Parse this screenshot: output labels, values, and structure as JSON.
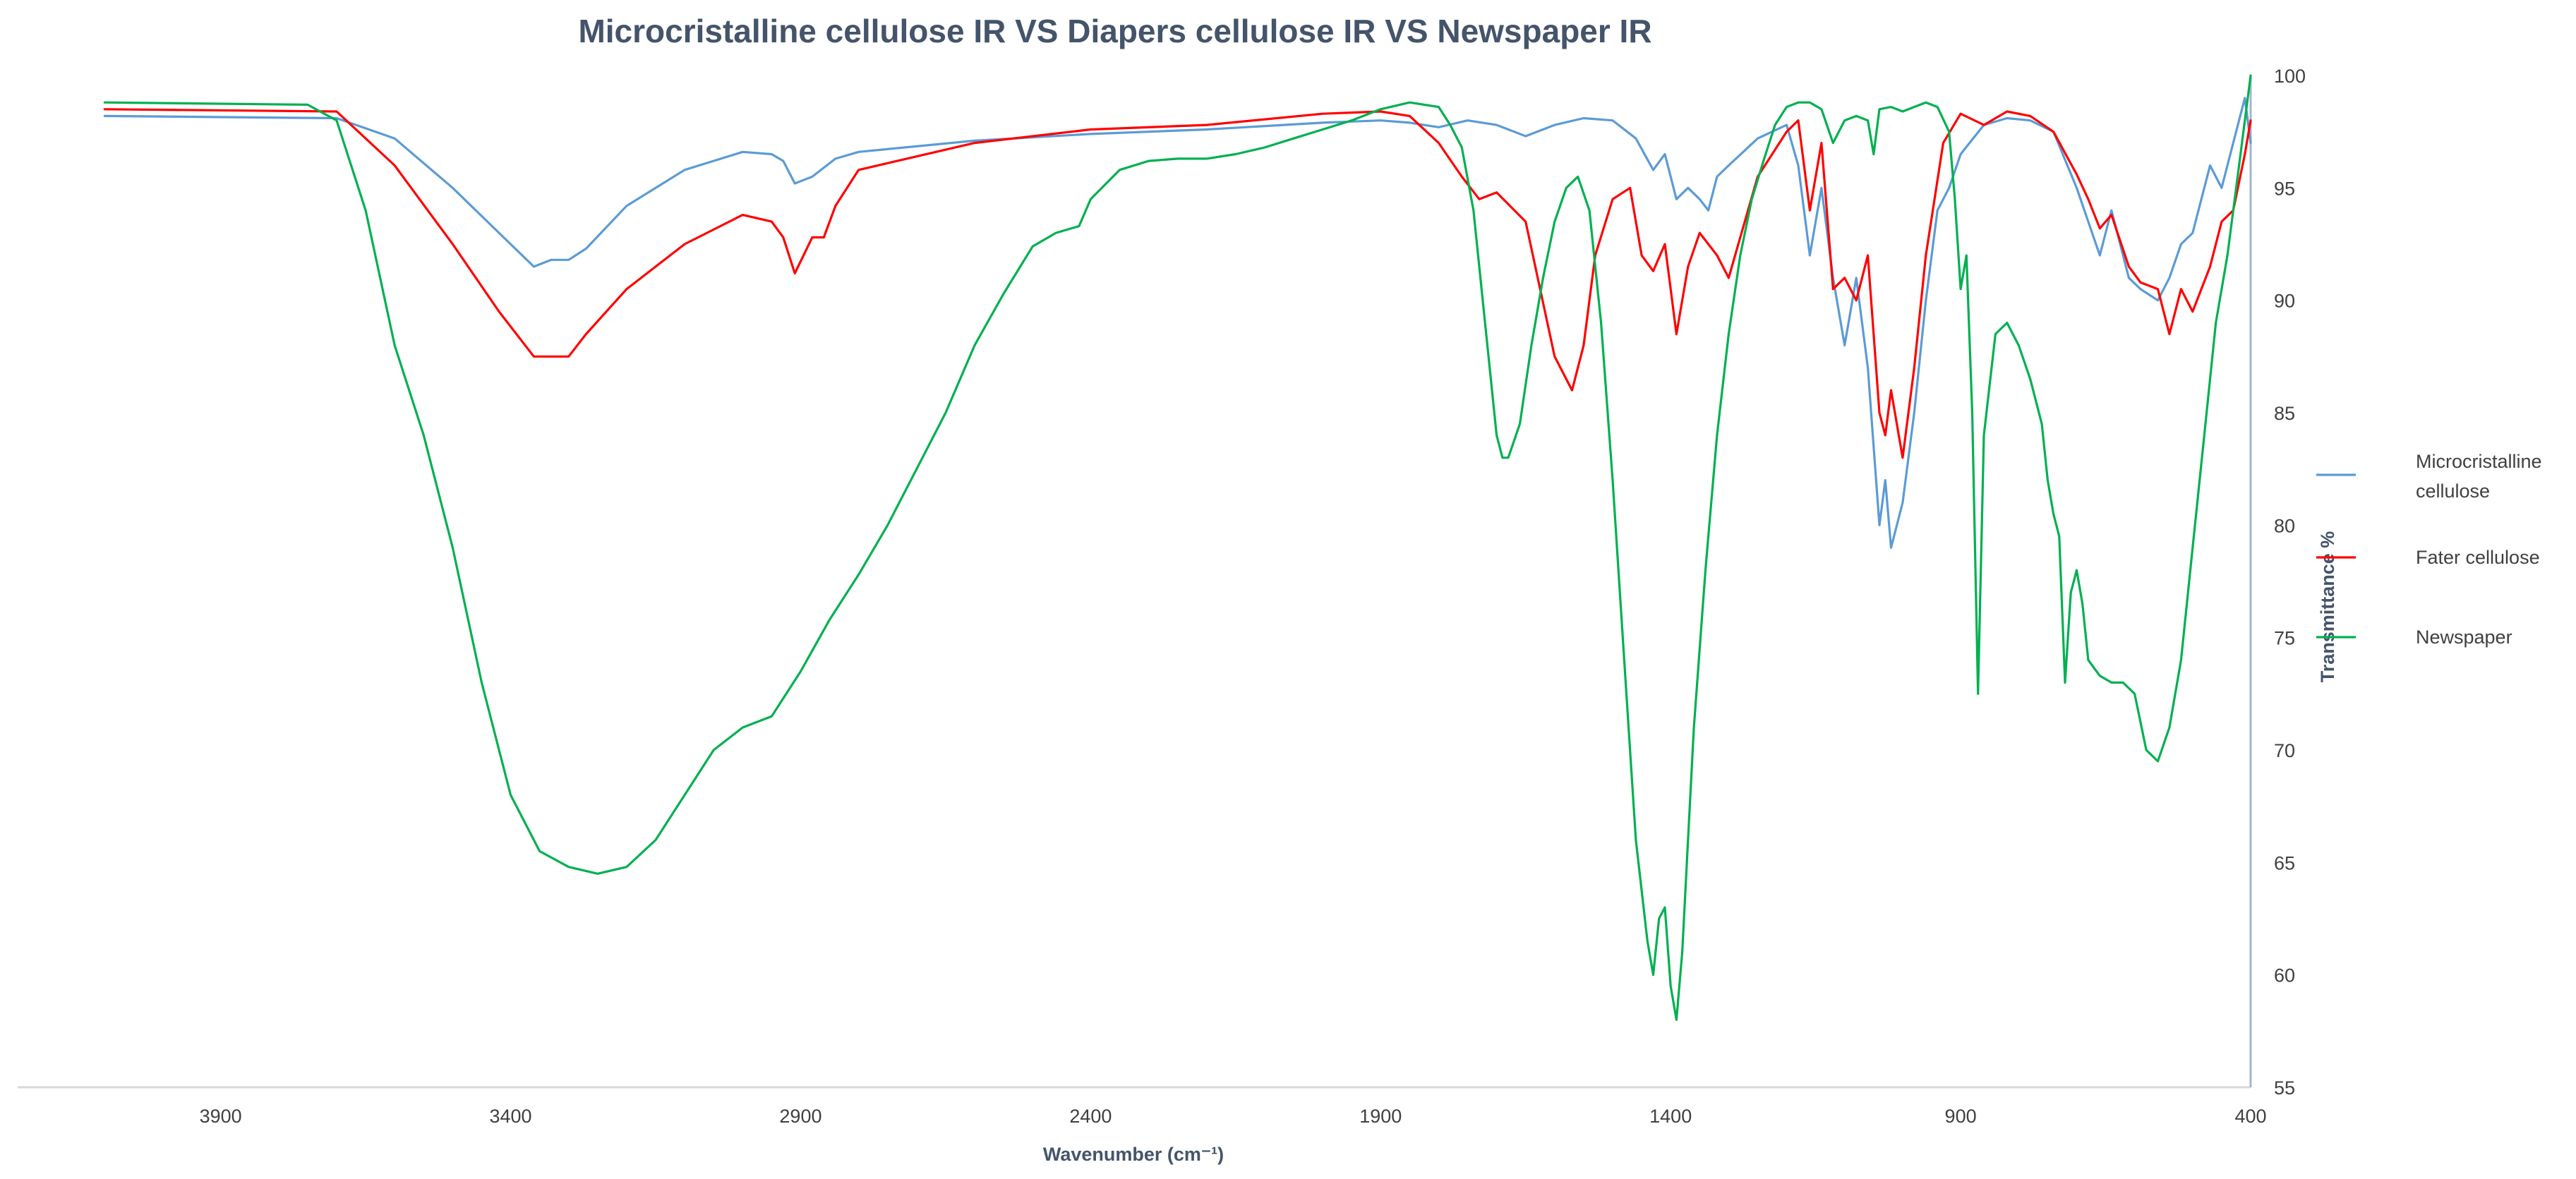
{
  "chart_data": {
    "type": "line",
    "title": "Microcristalline  cellulose IR VS Diapers cellulose IR VS  Newspaper IR",
    "xlabel": "Wavenumber (cm⁻¹)",
    "ylabel": "Transmittance %",
    "xlim": [
      4250,
      400
    ],
    "ylim": [
      55,
      100
    ],
    "x_ticks": [
      3900,
      3400,
      2900,
      2400,
      1900,
      1400,
      900,
      400
    ],
    "x_tick_labels": [
      "3900",
      "3400",
      "2900",
      "2400",
      "1900",
      "1400",
      "900",
      "400"
    ],
    "y_ticks": [
      55,
      60,
      65,
      70,
      75,
      80,
      85,
      90,
      95,
      100
    ],
    "y_tick_labels": [
      "55",
      "60",
      "65",
      "70",
      "75",
      "80",
      "85",
      "90",
      "95",
      "100"
    ],
    "legend_position": "right",
    "series": [
      {
        "name": "Microcristalline cellulose",
        "legend_lines": [
          "Microcristalline",
          "cellulose"
        ],
        "color": "#5b9bd5",
        "x": [
          4100,
          3700,
          3600,
          3500,
          3420,
          3360,
          3330,
          3300,
          3270,
          3200,
          3100,
          3000,
          2950,
          2930,
          2910,
          2880,
          2840,
          2800,
          2600,
          2400,
          2200,
          2000,
          1900,
          1850,
          1800,
          1750,
          1700,
          1650,
          1600,
          1550,
          1500,
          1460,
          1430,
          1410,
          1390,
          1370,
          1350,
          1335,
          1320,
          1300,
          1250,
          1200,
          1180,
          1160,
          1140,
          1120,
          1100,
          1080,
          1060,
          1040,
          1030,
          1020,
          1000,
          980,
          960,
          940,
          920,
          900,
          860,
          820,
          780,
          740,
          700,
          680,
          660,
          640,
          610,
          590,
          560,
          540,
          520,
          500,
          470,
          450,
          430,
          410,
          400
        ],
        "y": [
          98.2,
          98.1,
          97.2,
          95.0,
          93.0,
          91.5,
          91.8,
          91.8,
          92.3,
          94.2,
          95.8,
          96.6,
          96.5,
          96.2,
          95.2,
          95.5,
          96.3,
          96.6,
          97.1,
          97.4,
          97.6,
          97.9,
          98.0,
          97.9,
          97.7,
          98.0,
          97.8,
          97.3,
          97.8,
          98.1,
          98.0,
          97.2,
          95.8,
          96.5,
          94.5,
          95.0,
          94.5,
          94.0,
          95.5,
          96.0,
          97.2,
          97.8,
          96.0,
          92.0,
          95.0,
          91.0,
          88.0,
          91.0,
          87.0,
          80.0,
          82.0,
          79.0,
          81.0,
          85.0,
          90.0,
          94.0,
          95.0,
          96.5,
          97.8,
          98.1,
          98.0,
          97.5,
          95.0,
          93.5,
          92.0,
          94.0,
          91.0,
          90.5,
          90.0,
          91.0,
          92.5,
          93.0,
          96.0,
          95.0,
          97.0,
          99.0,
          97.0
        ]
      },
      {
        "name": "Fater cellulose",
        "legend_lines": [
          "Fater cellulose"
        ],
        "color": "#ff0000",
        "x": [
          4100,
          3700,
          3600,
          3500,
          3420,
          3360,
          3330,
          3300,
          3270,
          3200,
          3100,
          3000,
          2950,
          2930,
          2910,
          2880,
          2860,
          2840,
          2800,
          2600,
          2400,
          2200,
          2000,
          1900,
          1850,
          1800,
          1760,
          1730,
          1700,
          1650,
          1600,
          1570,
          1550,
          1530,
          1500,
          1470,
          1450,
          1430,
          1410,
          1390,
          1370,
          1350,
          1320,
          1300,
          1250,
          1200,
          1180,
          1160,
          1140,
          1120,
          1100,
          1080,
          1060,
          1040,
          1030,
          1020,
          1000,
          980,
          960,
          930,
          900,
          860,
          820,
          780,
          740,
          700,
          680,
          660,
          640,
          610,
          590,
          560,
          540,
          520,
          500,
          470,
          450,
          430,
          410,
          400
        ],
        "y": [
          98.5,
          98.4,
          96.0,
          92.5,
          89.5,
          87.5,
          87.5,
          87.5,
          88.5,
          90.5,
          92.5,
          93.8,
          93.5,
          92.8,
          91.2,
          92.8,
          92.8,
          94.2,
          95.8,
          97.0,
          97.6,
          97.8,
          98.3,
          98.4,
          98.2,
          97.0,
          95.5,
          94.5,
          94.8,
          93.5,
          87.5,
          86.0,
          88.0,
          92.0,
          94.5,
          95.0,
          92.0,
          91.3,
          92.5,
          88.5,
          91.5,
          93.0,
          92.0,
          91.0,
          95.5,
          97.5,
          98.0,
          94.0,
          97.0,
          90.5,
          91.0,
          90.0,
          92.0,
          85.0,
          84.0,
          86.0,
          83.0,
          87.0,
          92.0,
          97.0,
          98.3,
          97.8,
          98.4,
          98.2,
          97.5,
          95.6,
          94.5,
          93.2,
          93.8,
          91.5,
          90.8,
          90.5,
          88.5,
          90.5,
          89.5,
          91.5,
          93.5,
          94.0,
          96.5,
          98.0
        ]
      },
      {
        "name": "Newspaper",
        "legend_lines": [
          "Newspaper"
        ],
        "color": "#00b050",
        "x": [
          4100,
          3750,
          3700,
          3650,
          3600,
          3550,
          3500,
          3450,
          3400,
          3350,
          3300,
          3250,
          3200,
          3150,
          3100,
          3050,
          3000,
          2950,
          2900,
          2850,
          2800,
          2750,
          2700,
          2650,
          2600,
          2550,
          2500,
          2460,
          2420,
          2400,
          2350,
          2300,
          2250,
          2200,
          2150,
          2100,
          2050,
          2000,
          1950,
          1900,
          1850,
          1800,
          1780,
          1760,
          1740,
          1720,
          1700,
          1690,
          1680,
          1660,
          1640,
          1620,
          1600,
          1580,
          1560,
          1540,
          1520,
          1500,
          1480,
          1460,
          1440,
          1430,
          1420,
          1410,
          1400,
          1390,
          1380,
          1370,
          1360,
          1340,
          1320,
          1300,
          1280,
          1260,
          1240,
          1220,
          1200,
          1180,
          1160,
          1140,
          1120,
          1100,
          1080,
          1060,
          1050,
          1040,
          1020,
          1000,
          980,
          960,
          940,
          920,
          910,
          900,
          890,
          880,
          870,
          860,
          840,
          820,
          800,
          780,
          760,
          750,
          740,
          730,
          720,
          710,
          700,
          690,
          680,
          660,
          640,
          620,
          600,
          580,
          560,
          540,
          520,
          500,
          480,
          460,
          440,
          420,
          410,
          400
        ],
        "y": [
          98.8,
          98.7,
          98.0,
          94.0,
          88.0,
          84.0,
          79.0,
          73.0,
          68.0,
          65.5,
          64.8,
          64.5,
          64.8,
          66.0,
          68.0,
          70.0,
          71.0,
          71.5,
          73.5,
          75.8,
          77.8,
          80.0,
          82.5,
          85.0,
          88.0,
          90.3,
          92.4,
          93.0,
          93.3,
          94.5,
          95.8,
          96.2,
          96.3,
          96.3,
          96.5,
          96.8,
          97.2,
          97.6,
          98.0,
          98.5,
          98.8,
          98.6,
          97.8,
          96.8,
          94.0,
          89.0,
          84.0,
          83.0,
          83.0,
          84.5,
          88.0,
          91.0,
          93.5,
          95.0,
          95.5,
          94.0,
          89.0,
          82.0,
          74.0,
          66.0,
          61.5,
          60.0,
          62.5,
          63.0,
          59.5,
          58.0,
          61.0,
          66.0,
          71.0,
          78.0,
          84.0,
          88.5,
          92.0,
          94.5,
          96.2,
          97.8,
          98.6,
          98.8,
          98.8,
          98.5,
          97.0,
          98.0,
          98.2,
          98.0,
          96.5,
          98.5,
          98.6,
          98.4,
          98.6,
          98.8,
          98.6,
          97.5,
          94.5,
          90.5,
          92.0,
          85.0,
          72.5,
          84.0,
          88.5,
          89.0,
          88.0,
          86.5,
          84.5,
          82.0,
          80.5,
          79.5,
          73.0,
          77.0,
          78.0,
          76.5,
          74.0,
          73.3,
          73.0,
          73.0,
          72.5,
          70.0,
          69.5,
          71.0,
          74.0,
          79.0,
          84.0,
          89.0,
          92.0,
          96.0,
          98.0,
          100.0
        ]
      }
    ]
  }
}
